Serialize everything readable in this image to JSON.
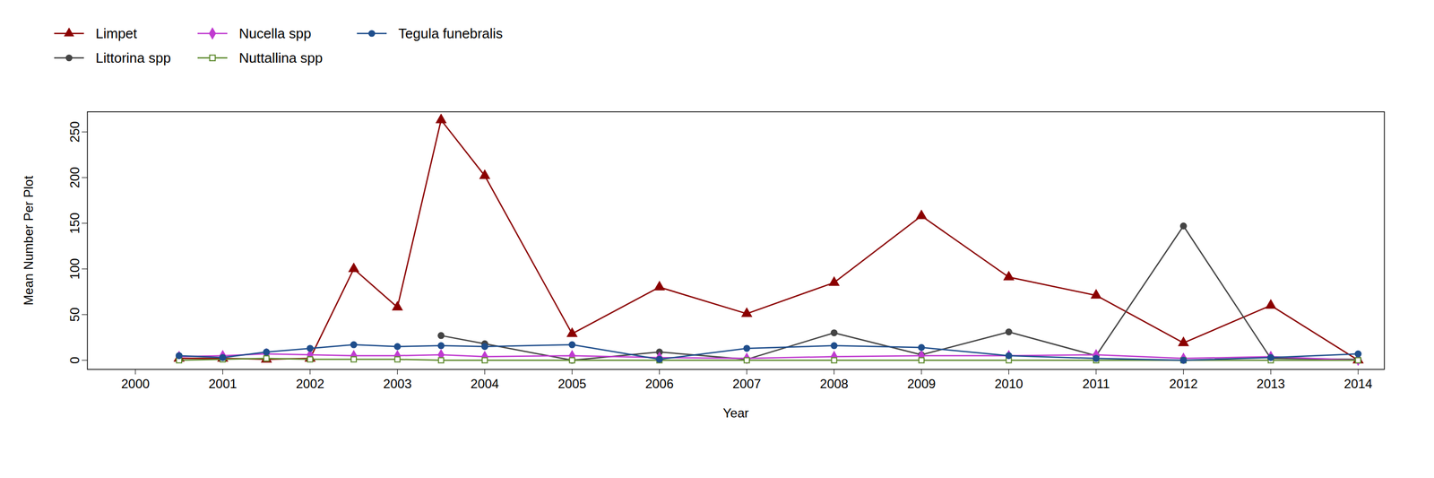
{
  "chart_data": {
    "type": "line",
    "x_label": "Year",
    "y_label": "Mean Number Per Plot",
    "x": [
      2000.5,
      2001,
      2001.5,
      2002,
      2002.5,
      2003,
      2003.5,
      2004,
      2005,
      2006,
      2007,
      2008,
      2009,
      2010,
      2011,
      2012,
      2013,
      2014
    ],
    "series": [
      {
        "name": "Limpet",
        "color": "#8b0000",
        "marker": "triangle",
        "values": [
          2,
          2,
          1,
          2,
          100,
          58,
          263,
          202,
          29,
          80,
          51,
          85,
          158,
          91,
          71,
          19,
          60,
          0
        ]
      },
      {
        "name": "Littorina spp",
        "color": "#444444",
        "marker": "circle",
        "values": [
          null,
          null,
          null,
          null,
          null,
          null,
          27,
          18,
          0,
          9,
          1,
          30,
          6,
          31,
          5,
          147,
          2,
          1
        ]
      },
      {
        "name": "Nucella spp",
        "color": "#c03bd0",
        "marker": "diamond",
        "values": [
          4,
          5,
          7,
          6,
          5,
          5,
          6,
          4,
          5,
          3,
          2,
          4,
          5,
          5,
          6,
          2,
          4,
          0
        ]
      },
      {
        "name": "Nuttallina spp",
        "color": "#5e8a2e",
        "marker": "square",
        "values": [
          0,
          1,
          2,
          1,
          1,
          1,
          0,
          0,
          0,
          0,
          0,
          0,
          0,
          0,
          0,
          0,
          0,
          0
        ]
      },
      {
        "name": "Tegula funebralis",
        "color": "#1f4e8c",
        "marker": "circle",
        "values": [
          5,
          3,
          9,
          13,
          17,
          15,
          16,
          15,
          17,
          1,
          13,
          16,
          14,
          5,
          2,
          0,
          3,
          7
        ]
      }
    ],
    "xlim": [
      1999.45,
      2014.3
    ],
    "xticks": [
      2000,
      2001,
      2002,
      2003,
      2004,
      2005,
      2006,
      2007,
      2008,
      2009,
      2010,
      2011,
      2012,
      2013,
      2014
    ],
    "ylim": [
      -10,
      272
    ],
    "yticks": [
      0,
      50,
      100,
      150,
      200,
      250
    ],
    "grid": false,
    "legend": "top-left"
  }
}
